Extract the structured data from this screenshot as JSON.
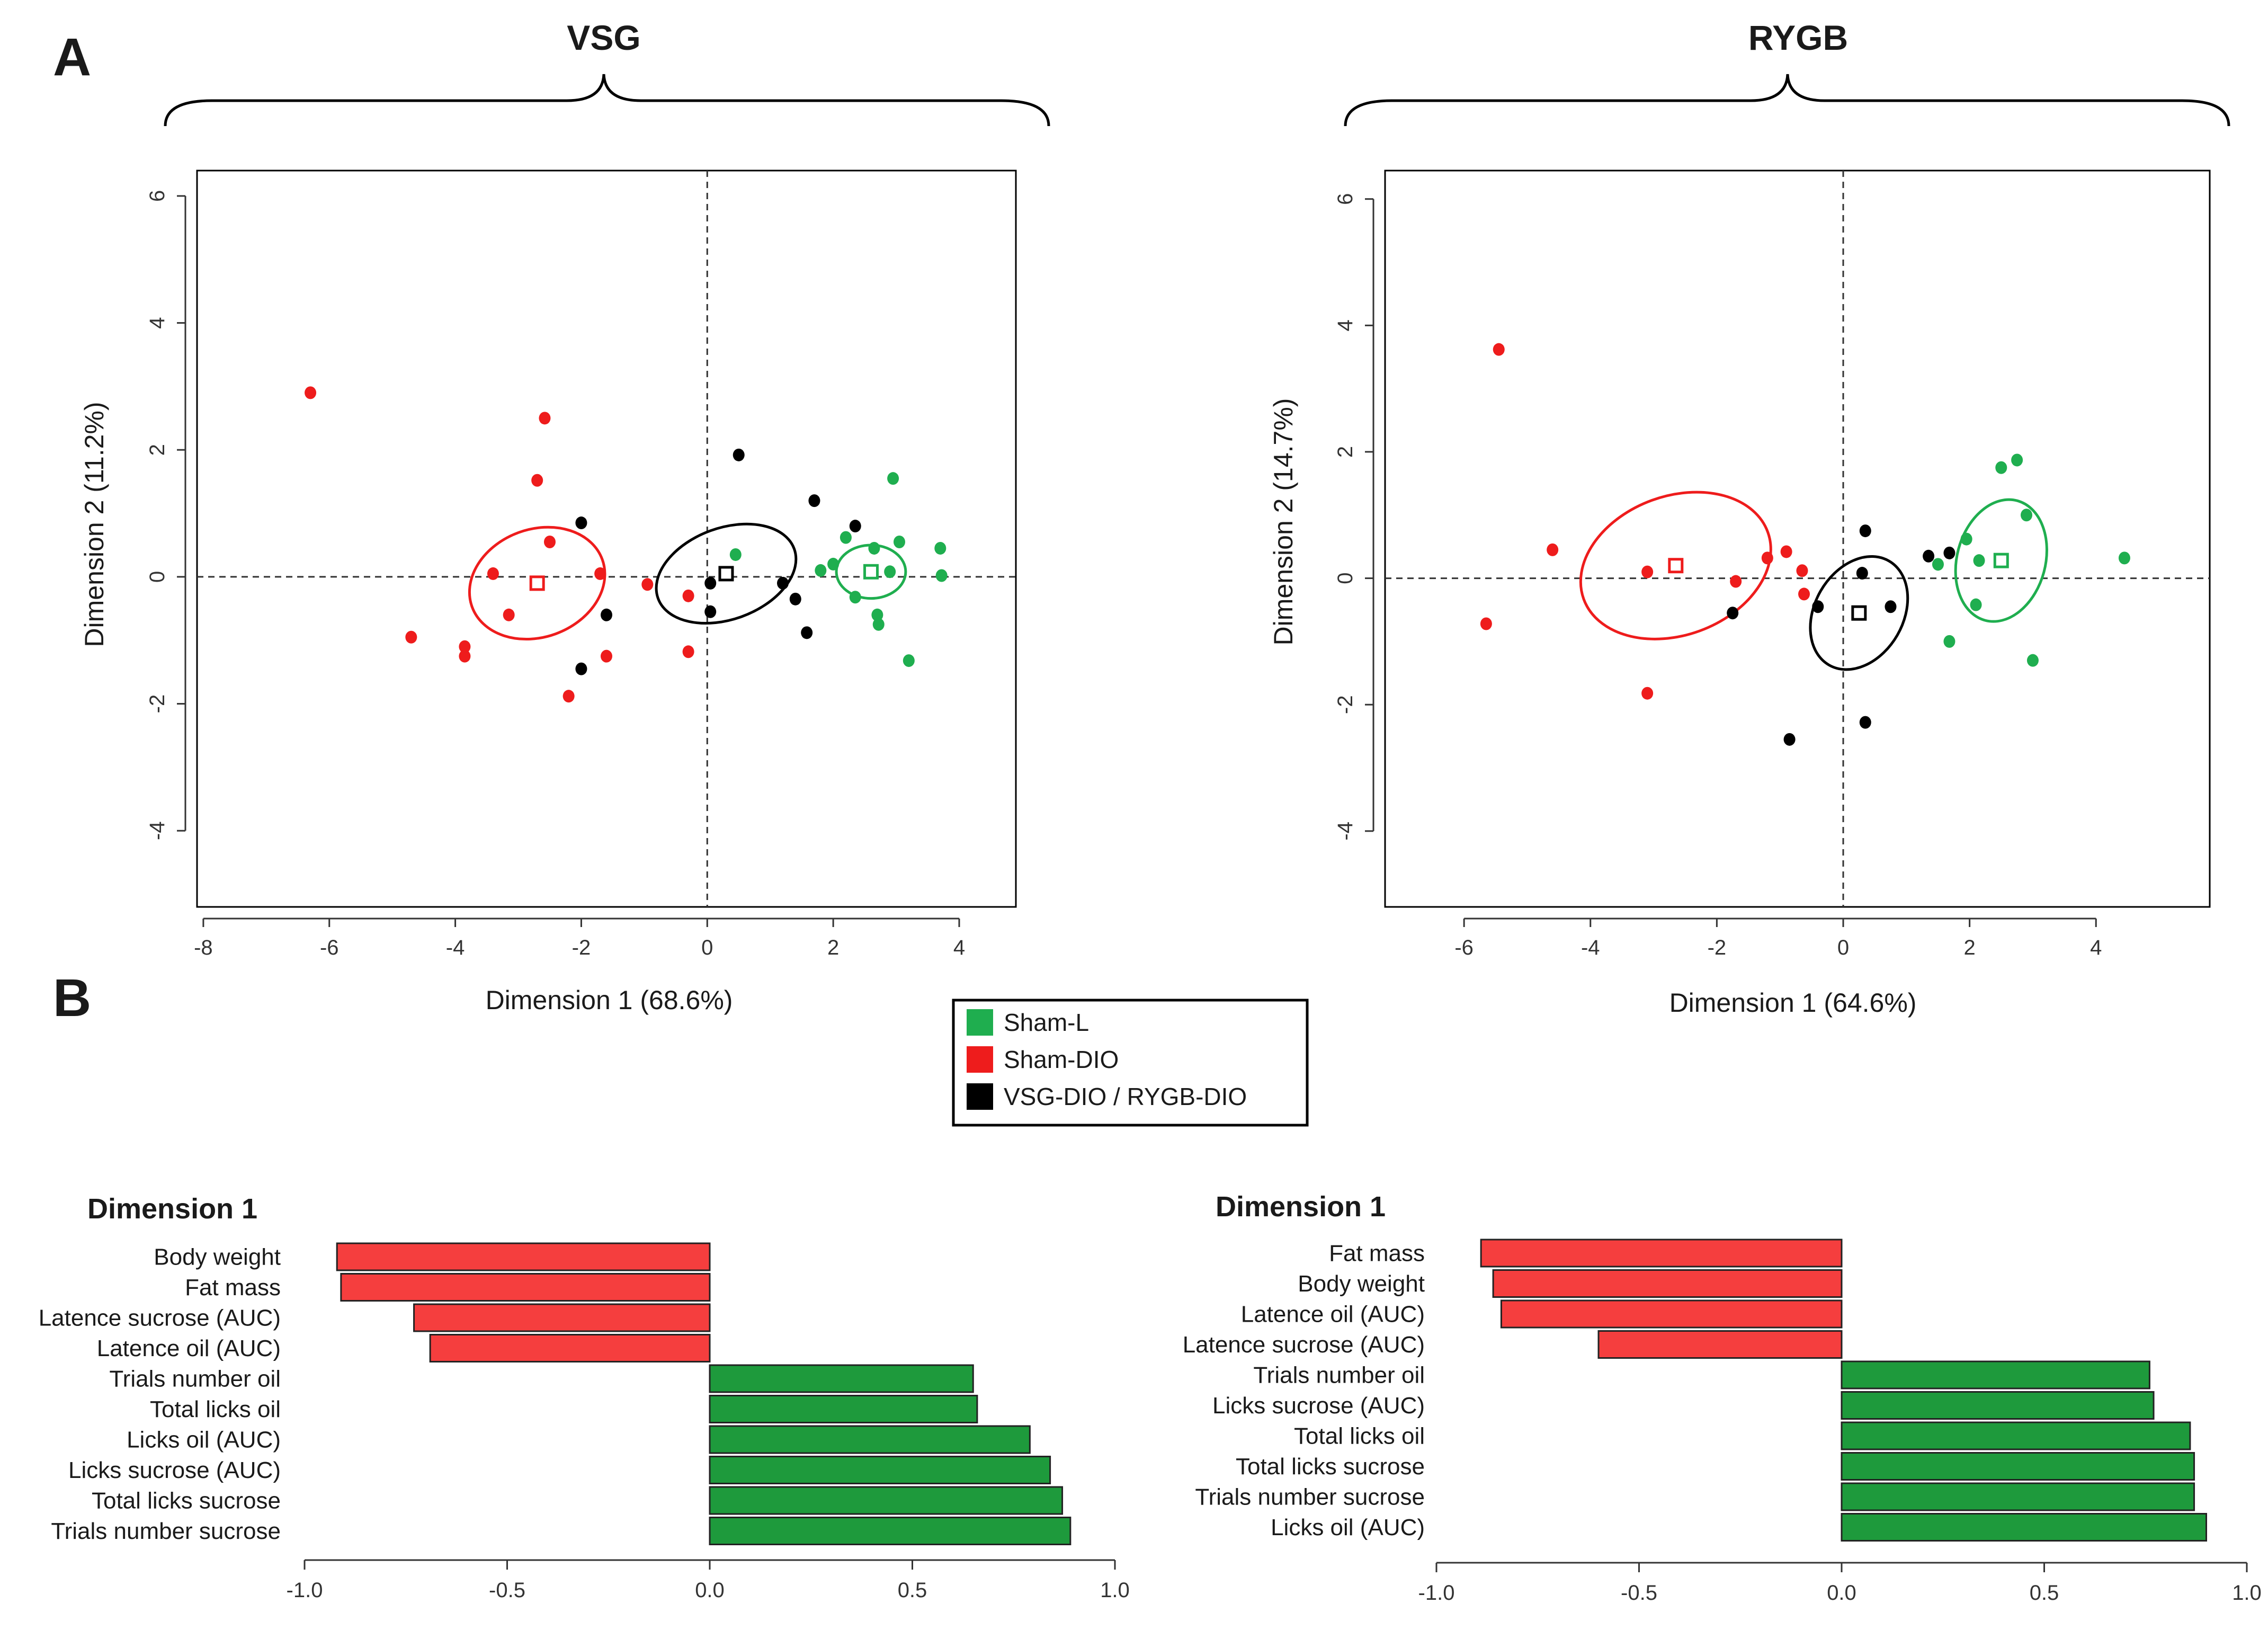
{
  "panel_letters": {
    "a": "A",
    "b": "B"
  },
  "colors": {
    "sham_l": "#1fae4f",
    "sham_dio": "#ee1c1c",
    "surgery": "#000000",
    "bar_pos": "#1e9a3c",
    "bar_neg": "#f53e3e"
  },
  "legend": {
    "items": [
      {
        "label": "Sham-L",
        "color": "#1fae4f"
      },
      {
        "label": "Sham-DIO",
        "color": "#ee1c1c"
      },
      {
        "label": "VSG-DIO / RYGB-DIO",
        "color": "#000000"
      }
    ]
  },
  "chart_data": [
    {
      "type": "scatter",
      "title": "VSG",
      "xlabel": "Dimension 1 (68.6%)",
      "ylabel": "Dimension 2 (11.2%)",
      "xlim": [
        -8.1,
        4.9
      ],
      "ylim": [
        -5.2,
        6.4
      ],
      "xticks": [
        -8,
        -6,
        -4,
        -2,
        0,
        2,
        4
      ],
      "yticks": [
        -4,
        -2,
        0,
        2,
        4,
        6
      ],
      "series": [
        {
          "name": "Sham-L",
          "color": "#1fae4f",
          "points": [
            [
              0.45,
              0.35
            ],
            [
              1.8,
              0.1
            ],
            [
              2.0,
              0.2
            ],
            [
              2.2,
              0.62
            ],
            [
              2.35,
              -0.32
            ],
            [
              2.65,
              0.45
            ],
            [
              2.7,
              -0.6
            ],
            [
              2.72,
              -0.75
            ],
            [
              2.9,
              0.08
            ],
            [
              2.95,
              1.55
            ],
            [
              3.05,
              0.55
            ],
            [
              3.2,
              -1.32
            ],
            [
              3.7,
              0.45
            ],
            [
              3.72,
              0.02
            ]
          ],
          "centroid": [
            2.6,
            0.08
          ],
          "ellipse": {
            "cx": 2.6,
            "cy": 0.08,
            "rx": 0.55,
            "ry": 0.42,
            "rot": 0
          }
        },
        {
          "name": "Sham-DIO",
          "color": "#ee1c1c",
          "points": [
            [
              -6.3,
              2.9
            ],
            [
              -4.7,
              -0.95
            ],
            [
              -3.85,
              -1.1
            ],
            [
              -3.85,
              -1.25
            ],
            [
              -3.4,
              0.05
            ],
            [
              -3.15,
              -0.6
            ],
            [
              -2.7,
              1.52
            ],
            [
              -2.58,
              2.5
            ],
            [
              -2.5,
              0.55
            ],
            [
              -2.2,
              -1.88
            ],
            [
              -1.7,
              0.05
            ],
            [
              -1.6,
              -1.25
            ],
            [
              -0.95,
              -0.12
            ],
            [
              -0.3,
              -0.3
            ],
            [
              -0.3,
              -1.18
            ]
          ],
          "centroid": [
            -2.7,
            -0.1
          ],
          "ellipse": {
            "cx": -2.7,
            "cy": -0.1,
            "rx": 1.1,
            "ry": 0.85,
            "rot": -20
          }
        },
        {
          "name": "VSG-DIO / RYGB-DIO",
          "color": "#000000",
          "points": [
            [
              -2.0,
              0.85
            ],
            [
              -2.0,
              -1.45
            ],
            [
              -1.6,
              -0.6
            ],
            [
              0.05,
              -0.1
            ],
            [
              0.05,
              -0.55
            ],
            [
              0.5,
              1.92
            ],
            [
              1.2,
              -0.1
            ],
            [
              1.4,
              -0.35
            ],
            [
              1.58,
              -0.88
            ],
            [
              1.7,
              1.2
            ],
            [
              2.35,
              0.8
            ]
          ],
          "centroid": [
            0.3,
            0.05
          ],
          "ellipse": {
            "cx": 0.3,
            "cy": 0.05,
            "rx": 1.15,
            "ry": 0.72,
            "rot": -20
          }
        }
      ]
    },
    {
      "type": "scatter",
      "title": "RYGB",
      "xlabel": "Dimension 1 (64.6%)",
      "ylabel": "Dimension 2 (14.7%)",
      "xlim": [
        -7.25,
        5.8
      ],
      "ylim": [
        -5.2,
        6.45
      ],
      "xticks": [
        -6,
        -4,
        -2,
        0,
        2,
        4
      ],
      "yticks": [
        -4,
        -2,
        0,
        2,
        4,
        6
      ],
      "series": [
        {
          "name": "Sham-L",
          "color": "#1fae4f",
          "points": [
            [
              1.5,
              0.22
            ],
            [
              1.68,
              -1.0
            ],
            [
              1.95,
              0.62
            ],
            [
              2.1,
              -0.42
            ],
            [
              2.15,
              0.28
            ],
            [
              2.5,
              1.75
            ],
            [
              2.75,
              1.87
            ],
            [
              2.9,
              1.0
            ],
            [
              3.0,
              -1.3
            ],
            [
              4.45,
              0.32
            ]
          ],
          "centroid": [
            2.5,
            0.28
          ],
          "ellipse": {
            "cx": 2.5,
            "cy": 0.28,
            "rx": 0.7,
            "ry": 0.98,
            "rot": 15
          }
        },
        {
          "name": "Sham-DIO",
          "color": "#ee1c1c",
          "points": [
            [
              -5.65,
              -0.72
            ],
            [
              -5.45,
              3.62
            ],
            [
              -4.6,
              0.45
            ],
            [
              -3.1,
              0.1
            ],
            [
              -3.1,
              -1.82
            ],
            [
              -1.7,
              -0.05
            ],
            [
              -1.2,
              0.32
            ],
            [
              -0.9,
              0.42
            ],
            [
              -0.65,
              0.12
            ],
            [
              -0.62,
              -0.25
            ]
          ],
          "centroid": [
            -2.65,
            0.2
          ],
          "ellipse": {
            "cx": -2.65,
            "cy": 0.2,
            "rx": 1.55,
            "ry": 1.1,
            "rot": -20
          }
        },
        {
          "name": "VSG-DIO / RYGB-DIO",
          "color": "#000000",
          "points": [
            [
              -1.75,
              -0.55
            ],
            [
              -0.85,
              -2.55
            ],
            [
              -0.4,
              -0.45
            ],
            [
              0.3,
              0.08
            ],
            [
              0.35,
              0.75
            ],
            [
              0.35,
              -2.28
            ],
            [
              0.75,
              -0.45
            ],
            [
              1.35,
              0.35
            ],
            [
              1.68,
              0.4
            ]
          ],
          "centroid": [
            0.25,
            -0.55
          ],
          "ellipse": {
            "cx": 0.25,
            "cy": -0.55,
            "rx": 0.95,
            "ry": 0.7,
            "rot": -60
          }
        }
      ]
    },
    {
      "type": "bar",
      "orientation": "horizontal",
      "title": "Dimension 1",
      "categories": [
        "Body weight",
        "Fat mass",
        "Latence sucrose (AUC)",
        "Latence oil (AUC)",
        "Trials number oil",
        "Total licks oil",
        "Licks oil (AUC)",
        "Licks sucrose (AUC)",
        "Total licks sucrose",
        "Trials number sucrose"
      ],
      "values": [
        -0.92,
        -0.91,
        -0.73,
        -0.69,
        0.65,
        0.66,
        0.79,
        0.84,
        0.87,
        0.89
      ],
      "xlim": [
        -1.0,
        1.0
      ],
      "xticks": [
        "-1.0",
        "-0.5",
        "0.0",
        "0.5",
        "1.0"
      ]
    },
    {
      "type": "bar",
      "orientation": "horizontal",
      "title": "Dimension 1",
      "categories": [
        "Fat mass",
        "Body weight",
        "Latence oil (AUC)",
        "Latence sucrose (AUC)",
        "Trials number oil",
        "Licks sucrose (AUC)",
        "Total licks oil",
        "Total licks sucrose",
        "Trials number sucrose",
        "Licks oil (AUC)"
      ],
      "values": [
        -0.89,
        -0.86,
        -0.84,
        -0.6,
        0.76,
        0.77,
        0.86,
        0.87,
        0.87,
        0.9
      ],
      "xlim": [
        -1.0,
        1.0
      ],
      "xticks": [
        "-1.0",
        "-0.5",
        "0.0",
        "0.5",
        "1.0"
      ]
    }
  ]
}
